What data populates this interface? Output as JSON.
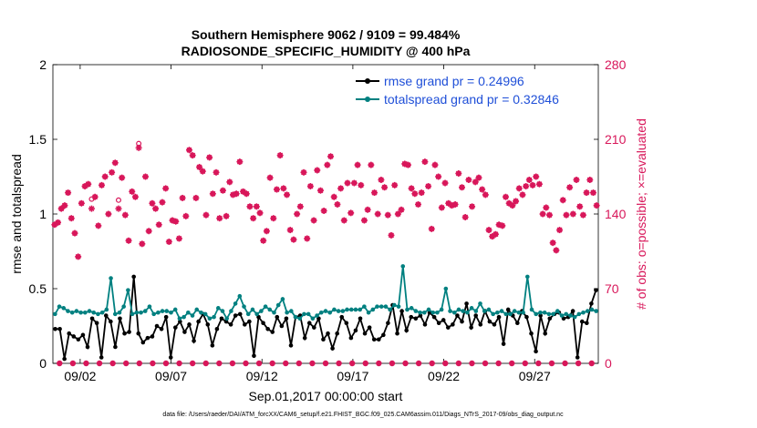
{
  "chart_data": {
    "type": "line",
    "title": "Southern Hemisphere 9062 / 9109 = 99.484%",
    "subtitle": "RADIOSONDE_SPECIFIC_HUMIDITY @ 400 hPa",
    "xlabel": "Sep.01,2017 00:00:00 start",
    "ylabel": "rmse and totalspread",
    "y2label": "# of obs: o=possible; ×=evaluated",
    "footer": "data file: /Users/raeder/DAI/ATM_forcXX/CAM6_setup/f.e21.FHIST_BGC.f09_025.CAM6assim.011/Diags_NTrS_2017-09/obs_diag_output.nc",
    "xlim": [
      0.5,
      30.5
    ],
    "ylim": [
      0,
      2
    ],
    "y2lim": [
      0,
      280
    ],
    "x_tick_labels": [
      "09/02",
      "09/07",
      "09/12",
      "09/17",
      "09/22",
      "09/27"
    ],
    "x_tick_days": [
      2,
      7,
      12,
      17,
      22,
      27
    ],
    "y_tick_labels": [
      "0",
      "0.5",
      "1",
      "1.5",
      "2"
    ],
    "y2_tick_labels": [
      "0",
      "70",
      "140",
      "210",
      "280"
    ],
    "colors": {
      "rmse": "#000000",
      "spread": "#008080",
      "obs": "#d8175a",
      "legend_text": "#1f4fd8"
    },
    "series": [
      {
        "name": "rmse grand pr = 0.24996",
        "values": [
          0.23,
          0.23,
          0.03,
          0.2,
          0.18,
          0.16,
          0.19,
          0.11,
          0.3,
          0.27,
          0.04,
          0.32,
          0.28,
          0.11,
          0.3,
          0.2,
          0.21,
          0.58,
          0.2,
          0.14,
          0.17,
          0.18,
          0.25,
          0.23,
          0.31,
          0.04,
          0.24,
          0.28,
          0.21,
          0.26,
          0.15,
          0.28,
          0.33,
          0.26,
          0.12,
          0.23,
          0.3,
          0.28,
          0.26,
          0.32,
          0.33,
          0.26,
          0.28,
          0.05,
          0.31,
          0.27,
          0.23,
          0.21,
          0.31,
          0.25,
          0.3,
          0.12,
          0.31,
          0.32,
          0.17,
          0.27,
          0.24,
          0.3,
          0.16,
          0.2,
          0.1,
          0.2,
          0.31,
          0.27,
          0.17,
          0.22,
          0.3,
          0.2,
          0.24,
          0.16,
          0.16,
          0.19,
          0.27,
          0.39,
          0.2,
          0.35,
          0.22,
          0.31,
          0.3,
          0.32,
          0.26,
          0.34,
          0.31,
          0.27,
          0.29,
          0.24,
          0.26,
          0.32,
          0.28,
          0.4,
          0.24,
          0.32,
          0.26,
          0.35,
          0.28,
          0.26,
          0.31,
          0.13,
          0.36,
          0.32,
          0.27,
          0.35,
          0.31,
          0.2,
          0.08,
          0.32,
          0.2,
          0.3,
          0.33,
          0.34,
          0.3,
          0.31,
          0.35,
          0.04,
          0.28,
          0.27,
          0.4,
          0.49
        ]
      },
      {
        "name": "totalspread grand pr = 0.32846",
        "values": [
          0.33,
          0.38,
          0.37,
          0.35,
          0.34,
          0.35,
          0.34,
          0.34,
          0.35,
          0.34,
          0.33,
          0.34,
          0.36,
          0.57,
          0.33,
          0.34,
          0.38,
          0.49,
          0.33,
          0.34,
          0.34,
          0.35,
          0.38,
          0.33,
          0.34,
          0.35,
          0.35,
          0.34,
          0.36,
          0.3,
          0.31,
          0.34,
          0.32,
          0.36,
          0.34,
          0.33,
          0.3,
          0.31,
          0.37,
          0.35,
          0.3,
          0.35,
          0.4,
          0.45,
          0.38,
          0.33,
          0.36,
          0.33,
          0.35,
          0.38,
          0.36,
          0.34,
          0.39,
          0.43,
          0.34,
          0.35,
          0.31,
          0.3,
          0.33,
          0.33,
          0.3,
          0.32,
          0.34,
          0.35,
          0.34,
          0.36,
          0.35,
          0.35,
          0.36,
          0.36,
          0.36,
          0.36,
          0.38,
          0.34,
          0.36,
          0.38,
          0.38,
          0.38,
          0.36,
          0.39,
          0.38,
          0.65,
          0.36,
          0.37,
          0.35,
          0.34,
          0.34,
          0.36,
          0.34,
          0.34,
          0.36,
          0.5,
          0.35,
          0.34,
          0.36,
          0.35,
          0.34,
          0.37,
          0.35,
          0.4,
          0.35,
          0.36,
          0.33,
          0.34,
          0.35,
          0.33,
          0.33,
          0.35,
          0.34,
          0.34,
          0.58,
          0.36,
          0.33,
          0.34,
          0.34,
          0.33,
          0.33,
          0.35,
          0.32,
          0.33,
          0.32,
          0.31,
          0.33,
          0.34,
          0.35,
          0.36,
          0.35
        ]
      }
    ],
    "obs_possible_values": [
      0.92,
      0.94,
      1.04,
      1.07,
      1.16,
      0.97,
      0.87,
      0.72,
      1.08,
      1.2,
      1.22,
      1.12,
      1.11,
      0.92,
      1.19,
      1.27,
      1.0,
      1.28,
      1.35,
      1.09,
      1.26,
      0.99,
      0.83,
      1.13,
      1.12,
      1.48,
      0.81,
      1.26,
      0.89,
      1.07,
      1.04,
      0.93,
      1.08,
      1.17,
      0.82,
      0.96,
      0.96,
      0.84,
      1.11,
      0.99,
      1.44,
      1.43,
      1.12,
      1.32,
      1.28,
      0.99,
      1.38,
      1.14,
      1.28,
      0.97,
      1.16,
      0.99,
      1.21,
      1.12,
      1.14,
      1.35,
      1.15,
      1.14,
      1.05,
      0.97,
      1.05,
      1.02,
      0.82,
      0.88,
      1.25,
      0.97,
      1.17,
      1.39,
      1.17,
      1.13,
      0.89,
      0.82,
      1.0,
      1.06,
      1.28,
      0.83,
      1.19,
      0.96,
      1.29,
      1.16,
      1.02,
      1.33,
      1.39,
      1.11,
      1.07,
      1.17,
      0.96,
      1.21,
      1.01,
      1.21,
      1.33,
      1.19,
      0.96,
      1.02,
      1.33,
      1.15,
      1.0,
      1.23,
      1.18,
      0.99,
      0.86,
      1.19,
      1.0,
      1.03,
      1.34,
      1.33,
      1.17,
      1.14,
      1.07,
      1.14,
      1.35,
      1.19,
      0.9,
      1.33,
      1.25,
      1.04,
      1.21,
      1.07,
      1.06,
      1.06,
      1.27,
      1.18,
      0.98,
      1.23,
      1.05,
      1.22,
      1.24,
      1.17,
      1.13,
      0.89,
      0.85,
      0.86,
      0.93,
      0.92,
      1.11,
      1.07,
      1.06,
      1.09,
      1.17,
      1.13,
      1.19,
      1.23,
      1.19,
      1.25,
      1.2,
      1.0,
      1.04,
      0.99,
      0.81,
      0.76,
      0.89,
      1.09,
      0.99,
      1.18,
      1.0,
      1.23,
      1.05,
      0.99,
      1.14,
      1.23,
      1.14,
      1.06
    ],
    "obs_possible": [
      130,
      132,
      145,
      148,
      160,
      136,
      122,
      100,
      150,
      166,
      168,
      154,
      156,
      129,
      167,
      175,
      140,
      179,
      188,
      153,
      174,
      139,
      115,
      161,
      156,
      206,
      112,
      175,
      124,
      150,
      145,
      130,
      151,
      164,
      114,
      134,
      133,
      117,
      155,
      138,
      200,
      195,
      155,
      184,
      180,
      139,
      193,
      159,
      179,
      136,
      162,
      138,
      170,
      158,
      159,
      189,
      161,
      159,
      147,
      136,
      147,
      141,
      115,
      124,
      174,
      136,
      163,
      195,
      164,
      158,
      125,
      116,
      140,
      147,
      179,
      117,
      166,
      134,
      181,
      162,
      143,
      186,
      194,
      156,
      149,
      164,
      134,
      169,
      141,
      169,
      186,
      167,
      134,
      144,
      186,
      160,
      140,
      172,
      165,
      139,
      120,
      167,
      140,
      144,
      187,
      186,
      164,
      159,
      149,
      160,
      189,
      166,
      126,
      186,
      175,
      146,
      169,
      150,
      148,
      149,
      178,
      165,
      137,
      172,
      147,
      170,
      174,
      163,
      158,
      125,
      119,
      121,
      130,
      129,
      156,
      150,
      148,
      152,
      164,
      158,
      166,
      172,
      167,
      175,
      168,
      140,
      146,
      139,
      113,
      106,
      125,
      153,
      139,
      165,
      140,
      172,
      147,
      139,
      160,
      172,
      160,
      148
    ],
    "obs_evaluated": [
      130,
      132,
      145,
      148,
      160,
      136,
      122,
      100,
      150,
      166,
      168,
      145,
      156,
      129,
      167,
      175,
      140,
      179,
      188,
      145,
      174,
      139,
      115,
      161,
      156,
      202,
      112,
      175,
      124,
      150,
      145,
      130,
      151,
      164,
      114,
      134,
      133,
      117,
      155,
      138,
      200,
      195,
      155,
      184,
      180,
      139,
      193,
      159,
      179,
      136,
      162,
      138,
      170,
      158,
      159,
      189,
      161,
      159,
      147,
      136,
      147,
      141,
      115,
      124,
      174,
      136,
      163,
      195,
      164,
      158,
      125,
      116,
      140,
      147,
      179,
      117,
      166,
      134,
      181,
      162,
      143,
      186,
      194,
      156,
      149,
      164,
      134,
      169,
      141,
      169,
      186,
      167,
      134,
      144,
      186,
      160,
      140,
      172,
      165,
      139,
      120,
      167,
      140,
      144,
      187,
      186,
      164,
      159,
      149,
      160,
      189,
      166,
      126,
      186,
      175,
      146,
      169,
      150,
      148,
      149,
      178,
      165,
      137,
      172,
      147,
      170,
      174,
      163,
      158,
      125,
      119,
      121,
      130,
      129,
      156,
      150,
      148,
      152,
      164,
      158,
      166,
      172,
      167,
      175,
      168,
      140,
      146,
      139,
      113,
      106,
      125,
      153,
      139,
      165,
      140,
      172,
      147,
      139,
      160,
      172,
      160,
      148
    ]
  }
}
